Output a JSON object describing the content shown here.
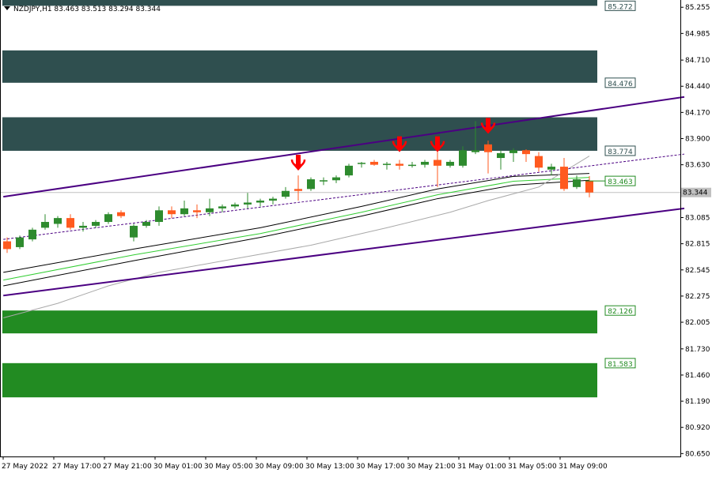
{
  "window": {
    "title": "NZDJPY,H1  83.463 83.513 83.294 83.344",
    "title_icon": "triangle-down-icon"
  },
  "chart_data": {
    "type": "candlestick",
    "symbol": "NZDJPY",
    "timeframe": "H1",
    "ohlc_header": {
      "open": 83.463,
      "high": 83.513,
      "low": 83.294,
      "close": 83.344
    },
    "current_price": 83.344,
    "ylim": [
      80.62,
      85.33
    ],
    "y_ticks": [
      "85.255",
      "84.985",
      "84.710",
      "84.440",
      "84.170",
      "83.900",
      "83.630",
      "83.355",
      "83.085",
      "82.815",
      "82.545",
      "82.275",
      "82.005",
      "81.730",
      "81.460",
      "81.190",
      "80.920",
      "80.650"
    ],
    "x_ticks": [
      "27 May 2022",
      "27 May 17:00",
      "27 May 21:00",
      "30 May 01:00",
      "30 May 05:00",
      "30 May 09:00",
      "30 May 13:00",
      "30 May 17:00",
      "30 May 21:00",
      "31 May 01:00",
      "31 May 05:00",
      "31 May 09:00"
    ],
    "x_tick_indices": [
      0,
      4,
      8,
      12,
      16,
      20,
      24,
      28,
      32,
      36,
      40,
      44
    ],
    "grid": false,
    "colors": {
      "background": "#ffffff",
      "bull": "#2e8b2e",
      "bear": "#ff5a1f",
      "supply_zone": "#2f4f4f",
      "demand_zone": "#228b22",
      "channel": "#4b0082",
      "current_line": "#c0c0c0",
      "ma_fast": "#000000",
      "ma_green": "#32cd32",
      "ma_slow": "#a9a9a9",
      "marker": "#ff0000"
    },
    "zones": [
      {
        "kind": "supply",
        "from": 85.27,
        "to": 85.36,
        "label": "85.272"
      },
      {
        "kind": "supply",
        "from": 84.476,
        "to": 84.81,
        "label": "84.476"
      },
      {
        "kind": "supply",
        "from": 83.774,
        "to": 84.12,
        "label": "83.774"
      },
      {
        "kind": "demand",
        "from": 81.89,
        "to": 82.126,
        "label": "82.126"
      },
      {
        "kind": "demand",
        "from": 81.23,
        "to": 81.583,
        "label": "81.583"
      }
    ],
    "level_label": "83.463",
    "channel_lines": [
      {
        "from": [
          -0.3,
          83.3
        ],
        "to": [
          53.5,
          84.33
        ]
      },
      {
        "from": [
          -0.3,
          82.28
        ],
        "to": [
          53.5,
          83.18
        ]
      }
    ],
    "dotted_trendline": {
      "from": [
        -0.3,
        82.86
      ],
      "to": [
        53.5,
        83.74
      ]
    },
    "candles": [
      {
        "o": 82.84,
        "h": 82.88,
        "l": 82.72,
        "c": 82.76
      },
      {
        "o": 82.78,
        "h": 82.9,
        "l": 82.76,
        "c": 82.88
      },
      {
        "o": 82.86,
        "h": 82.98,
        "l": 82.84,
        "c": 82.96
      },
      {
        "o": 82.98,
        "h": 83.12,
        "l": 82.96,
        "c": 83.04
      },
      {
        "o": 83.02,
        "h": 83.1,
        "l": 82.98,
        "c": 83.08
      },
      {
        "o": 83.08,
        "h": 83.12,
        "l": 82.96,
        "c": 82.98
      },
      {
        "o": 82.98,
        "h": 83.04,
        "l": 82.94,
        "c": 83.0
      },
      {
        "o": 83.0,
        "h": 83.06,
        "l": 82.98,
        "c": 83.04
      },
      {
        "o": 83.04,
        "h": 83.14,
        "l": 83.02,
        "c": 83.12
      },
      {
        "o": 83.14,
        "h": 83.16,
        "l": 83.08,
        "c": 83.1
      },
      {
        "o": 82.88,
        "h": 83.02,
        "l": 82.84,
        "c": 83.0
      },
      {
        "o": 83.0,
        "h": 83.06,
        "l": 82.98,
        "c": 83.04
      },
      {
        "o": 83.04,
        "h": 83.2,
        "l": 83.0,
        "c": 83.16
      },
      {
        "o": 83.16,
        "h": 83.2,
        "l": 83.08,
        "c": 83.12
      },
      {
        "o": 83.12,
        "h": 83.26,
        "l": 83.1,
        "c": 83.18
      },
      {
        "o": 83.16,
        "h": 83.22,
        "l": 83.08,
        "c": 83.14
      },
      {
        "o": 83.14,
        "h": 83.28,
        "l": 83.1,
        "c": 83.18
      },
      {
        "o": 83.18,
        "h": 83.22,
        "l": 83.14,
        "c": 83.2
      },
      {
        "o": 83.2,
        "h": 83.24,
        "l": 83.18,
        "c": 83.22
      },
      {
        "o": 83.22,
        "h": 83.34,
        "l": 83.18,
        "c": 83.24
      },
      {
        "o": 83.24,
        "h": 83.28,
        "l": 83.2,
        "c": 83.26
      },
      {
        "o": 83.26,
        "h": 83.3,
        "l": 83.22,
        "c": 83.28
      },
      {
        "o": 83.3,
        "h": 83.4,
        "l": 83.28,
        "c": 83.36
      },
      {
        "o": 83.38,
        "h": 83.52,
        "l": 83.26,
        "c": 83.36
      },
      {
        "o": 83.38,
        "h": 83.5,
        "l": 83.36,
        "c": 83.48
      },
      {
        "o": 83.46,
        "h": 83.5,
        "l": 83.42,
        "c": 83.47
      },
      {
        "o": 83.47,
        "h": 83.52,
        "l": 83.44,
        "c": 83.5
      },
      {
        "o": 83.52,
        "h": 83.64,
        "l": 83.5,
        "c": 83.62
      },
      {
        "o": 83.64,
        "h": 83.66,
        "l": 83.6,
        "c": 83.65
      },
      {
        "o": 83.66,
        "h": 83.68,
        "l": 83.62,
        "c": 83.63
      },
      {
        "o": 83.63,
        "h": 83.66,
        "l": 83.58,
        "c": 83.64
      },
      {
        "o": 83.64,
        "h": 83.68,
        "l": 83.58,
        "c": 83.62
      },
      {
        "o": 83.62,
        "h": 83.66,
        "l": 83.6,
        "c": 83.63
      },
      {
        "o": 83.63,
        "h": 83.68,
        "l": 83.6,
        "c": 83.66
      },
      {
        "o": 83.68,
        "h": 83.78,
        "l": 83.4,
        "c": 83.62
      },
      {
        "o": 83.62,
        "h": 83.68,
        "l": 83.6,
        "c": 83.66
      },
      {
        "o": 83.62,
        "h": 83.82,
        "l": 83.6,
        "c": 83.78
      },
      {
        "o": 83.76,
        "h": 84.08,
        "l": 83.74,
        "c": 83.78
      },
      {
        "o": 83.84,
        "h": 83.88,
        "l": 83.54,
        "c": 83.76
      },
      {
        "o": 83.7,
        "h": 83.78,
        "l": 83.58,
        "c": 83.75
      },
      {
        "o": 83.75,
        "h": 83.8,
        "l": 83.66,
        "c": 83.78
      },
      {
        "o": 83.78,
        "h": 83.79,
        "l": 83.66,
        "c": 83.74
      },
      {
        "o": 83.72,
        "h": 83.76,
        "l": 83.56,
        "c": 83.6
      },
      {
        "o": 83.58,
        "h": 83.64,
        "l": 83.52,
        "c": 83.61
      },
      {
        "o": 83.61,
        "h": 83.7,
        "l": 83.36,
        "c": 83.38
      },
      {
        "o": 83.4,
        "h": 83.52,
        "l": 83.38,
        "c": 83.48
      },
      {
        "o": 83.463,
        "h": 83.513,
        "l": 83.294,
        "c": 83.344
      }
    ],
    "markers": [
      {
        "index": 23,
        "price": 83.57,
        "icon": "down-arrow-icon"
      },
      {
        "index": 31,
        "price": 83.76,
        "icon": "down-arrow-icon"
      },
      {
        "index": 34,
        "price": 83.76,
        "icon": "down-arrow-icon"
      },
      {
        "index": 38,
        "price": 83.95,
        "icon": "down-arrow-icon"
      }
    ],
    "moving_averages": [
      {
        "role": "fast",
        "points": [
          [
            -0.3,
            82.52
          ],
          [
            10,
            82.76
          ],
          [
            20,
            82.98
          ],
          [
            28,
            83.2
          ],
          [
            34,
            83.38
          ],
          [
            40,
            83.51
          ],
          [
            46,
            83.54
          ]
        ]
      },
      {
        "role": "green",
        "points": [
          [
            -0.3,
            82.44
          ],
          [
            10,
            82.7
          ],
          [
            20,
            82.92
          ],
          [
            28,
            83.14
          ],
          [
            34,
            83.32
          ],
          [
            40,
            83.46
          ],
          [
            46,
            83.5
          ]
        ]
      },
      {
        "role": "mid",
        "points": [
          [
            -0.3,
            82.38
          ],
          [
            10,
            82.64
          ],
          [
            20,
            82.88
          ],
          [
            28,
            83.1
          ],
          [
            34,
            83.28
          ],
          [
            40,
            83.42
          ],
          [
            46,
            83.47
          ]
        ]
      },
      {
        "role": "slow",
        "points": [
          [
            -0.3,
            82.05
          ],
          [
            4,
            82.2
          ],
          [
            8,
            82.38
          ],
          [
            12,
            82.52
          ],
          [
            18,
            82.66
          ],
          [
            24,
            82.8
          ],
          [
            30,
            82.98
          ],
          [
            35,
            83.14
          ],
          [
            38,
            83.26
          ],
          [
            42,
            83.4
          ],
          [
            46,
            83.72
          ]
        ]
      }
    ]
  }
}
